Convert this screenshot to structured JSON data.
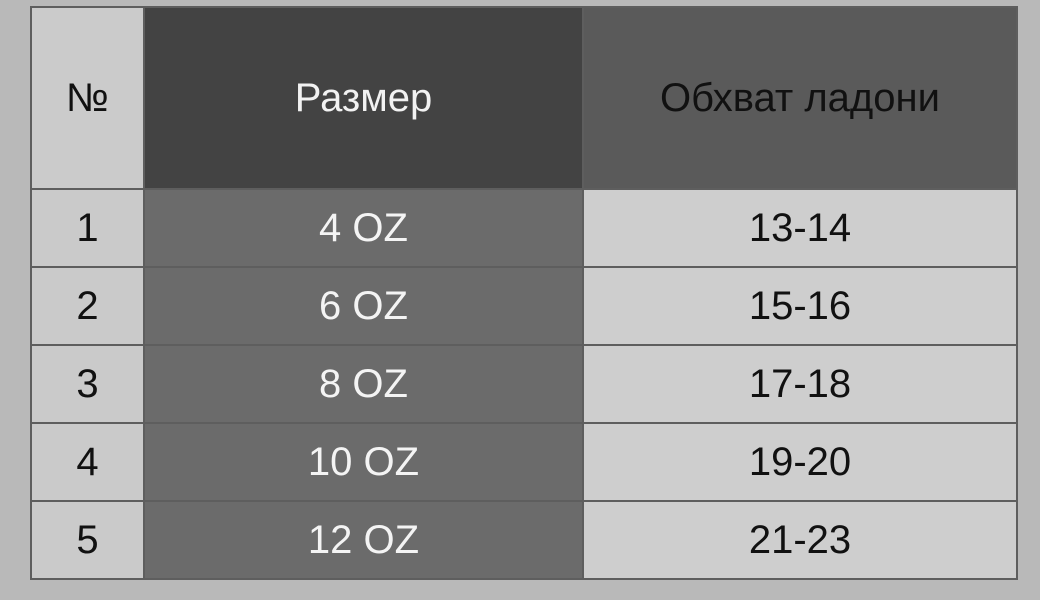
{
  "table": {
    "headers": [
      "№",
      "Размер",
      "Обхват ладони"
    ],
    "rows": [
      [
        "1",
        "4 OZ",
        "13-14"
      ],
      [
        "2",
        "6 OZ",
        "15-16"
      ],
      [
        "3",
        "8 OZ",
        "17-18"
      ],
      [
        "4",
        "10 OZ",
        "19-20"
      ],
      [
        "5",
        "12 OZ",
        "21-23"
      ]
    ]
  },
  "colors": {
    "header_size_bg": "#434343",
    "header_palm_bg": "#5a5a5a",
    "size_column_bg": "#6b6b6b",
    "light_cell_bg": "#cecece"
  }
}
